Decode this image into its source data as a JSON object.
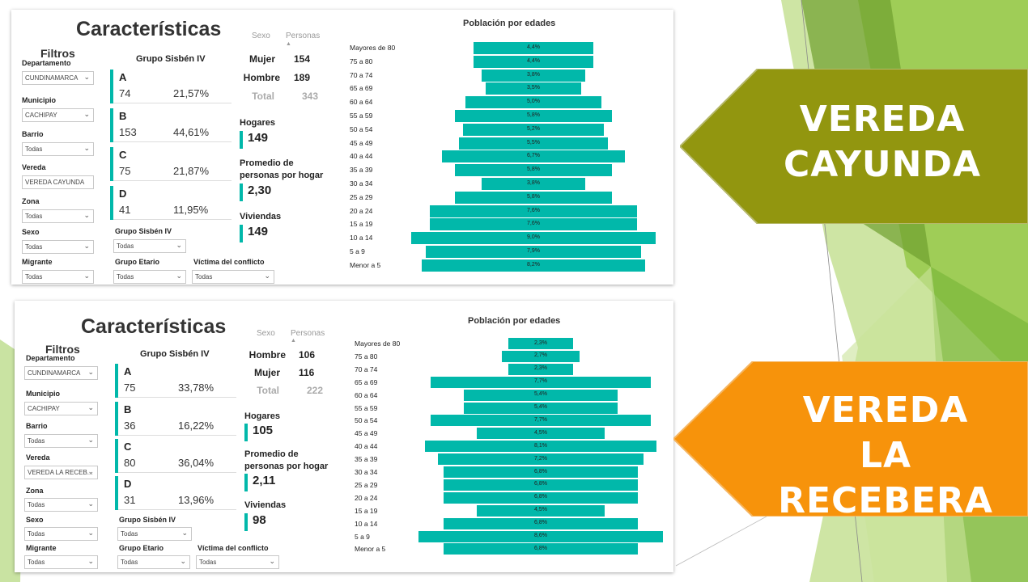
{
  "colors": {
    "bar": "#01b8aa",
    "green_banner": "#92960f",
    "orange_banner": "#f7930b"
  },
  "panels": [
    {
      "title": "Características",
      "filtros_title": "Filtros",
      "filters": [
        {
          "label": "Departamento",
          "value": "CUNDINAMARCA"
        },
        {
          "label": "Municipio",
          "value": "CACHIPAY"
        },
        {
          "label": "Barrio",
          "value": "Todas"
        },
        {
          "label": "Vereda",
          "value": "VEREDA CAYUNDA"
        },
        {
          "label": "Zona",
          "value": "Todas"
        },
        {
          "label": "Sexo",
          "value": "Todas"
        },
        {
          "label": "Migrante",
          "value": "Todas"
        }
      ],
      "bottom_filters": [
        {
          "label": "Grupo Sisbén IV",
          "value": "Todas"
        },
        {
          "label": "Grupo Etario",
          "value": "Todas"
        },
        {
          "label": "Víctima del conflicto",
          "value": "Todas"
        }
      ],
      "grupo_title": "Grupo Sisbén IV",
      "grupos": [
        {
          "letter": "A",
          "count": "74",
          "pct": "21,57%"
        },
        {
          "letter": "B",
          "count": "153",
          "pct": "44,61%"
        },
        {
          "letter": "C",
          "count": "75",
          "pct": "21,87%"
        },
        {
          "letter": "D",
          "count": "41",
          "pct": "11,95%"
        }
      ],
      "sexo_header": "Sexo",
      "personas_header": "Personas",
      "sexo_rows": [
        {
          "label": "Mujer",
          "value": "154"
        },
        {
          "label": "Hombre",
          "value": "189"
        }
      ],
      "total_label": "Total",
      "total_value": "343",
      "hogares_label": "Hogares",
      "hogares_value": "149",
      "promedio_label_1": "Promedio de",
      "promedio_label_2": "personas por hogar",
      "promedio_value": "2,30",
      "viviendas_label": "Viviendas",
      "viviendas_value": "149",
      "pyramid_title": "Población por edades",
      "pyramid": [
        {
          "age": "Mayores de 80",
          "pct": "4,4%",
          "v": 4.4
        },
        {
          "age": "75 a 80",
          "pct": "4,4%",
          "v": 4.4
        },
        {
          "age": "70 a 74",
          "pct": "3,8%",
          "v": 3.8
        },
        {
          "age": "65 a 69",
          "pct": "3,5%",
          "v": 3.5
        },
        {
          "age": "60 a 64",
          "pct": "5,0%",
          "v": 5.0
        },
        {
          "age": "55 a 59",
          "pct": "5,8%",
          "v": 5.8
        },
        {
          "age": "50 a 54",
          "pct": "5,2%",
          "v": 5.2
        },
        {
          "age": "45 a 49",
          "pct": "5,5%",
          "v": 5.5
        },
        {
          "age": "40 a 44",
          "pct": "6,7%",
          "v": 6.7
        },
        {
          "age": "35 a 39",
          "pct": "5,8%",
          "v": 5.8
        },
        {
          "age": "30 a 34",
          "pct": "3,8%",
          "v": 3.8
        },
        {
          "age": "25 a 29",
          "pct": "5,8%",
          "v": 5.8
        },
        {
          "age": "20 a 24",
          "pct": "7,6%",
          "v": 7.6
        },
        {
          "age": "15 a 19",
          "pct": "7,6%",
          "v": 7.6
        },
        {
          "age": "10 a 14",
          "pct": "9,0%",
          "v": 9.0
        },
        {
          "age": "5 a 9",
          "pct": "7,9%",
          "v": 7.9
        },
        {
          "age": "Menor a 5",
          "pct": "8,2%",
          "v": 8.2
        }
      ]
    },
    {
      "title": "Características",
      "filtros_title": "Filtros",
      "filters": [
        {
          "label": "Departamento",
          "value": "CUNDINAMARCA"
        },
        {
          "label": "Municipio",
          "value": "CACHIPAY"
        },
        {
          "label": "Barrio",
          "value": "Todas"
        },
        {
          "label": "Vereda",
          "value": "VEREDA LA RECEB..."
        },
        {
          "label": "Zona",
          "value": "Todas"
        },
        {
          "label": "Sexo",
          "value": "Todas"
        },
        {
          "label": "Migrante",
          "value": "Todas"
        }
      ],
      "bottom_filters": [
        {
          "label": "Grupo Sisbén IV",
          "value": "Todas"
        },
        {
          "label": "Grupo Etario",
          "value": "Todas"
        },
        {
          "label": "Víctima del conflicto",
          "value": "Todas"
        }
      ],
      "grupo_title": "Grupo Sisbén IV",
      "grupos": [
        {
          "letter": "A",
          "count": "75",
          "pct": "33,78%"
        },
        {
          "letter": "B",
          "count": "36",
          "pct": "16,22%"
        },
        {
          "letter": "C",
          "count": "80",
          "pct": "36,04%"
        },
        {
          "letter": "D",
          "count": "31",
          "pct": "13,96%"
        }
      ],
      "sexo_header": "Sexo",
      "personas_header": "Personas",
      "sexo_rows": [
        {
          "label": "Hombre",
          "value": "106"
        },
        {
          "label": "Mujer",
          "value": "116"
        }
      ],
      "total_label": "Total",
      "total_value": "222",
      "hogares_label": "Hogares",
      "hogares_value": "105",
      "promedio_label_1": "Promedio de",
      "promedio_label_2": "personas por hogar",
      "promedio_value": "2,11",
      "viviendas_label": "Viviendas",
      "viviendas_value": "98",
      "pyramid_title": "Población por edades",
      "pyramid": [
        {
          "age": "Mayores de 80",
          "pct": "2,3%",
          "v": 2.3
        },
        {
          "age": "75 a 80",
          "pct": "2,7%",
          "v": 2.7
        },
        {
          "age": "70 a 74",
          "pct": "2,3%",
          "v": 2.3
        },
        {
          "age": "65 a 69",
          "pct": "7,7%",
          "v": 7.7
        },
        {
          "age": "60 a 64",
          "pct": "5,4%",
          "v": 5.4
        },
        {
          "age": "55 a 59",
          "pct": "5,4%",
          "v": 5.4
        },
        {
          "age": "50 a 54",
          "pct": "7,7%",
          "v": 7.7
        },
        {
          "age": "45 a 49",
          "pct": "4,5%",
          "v": 4.5
        },
        {
          "age": "40 a 44",
          "pct": "8,1%",
          "v": 8.1
        },
        {
          "age": "35 a 39",
          "pct": "7,2%",
          "v": 7.2
        },
        {
          "age": "30 a 34",
          "pct": "6,8%",
          "v": 6.8
        },
        {
          "age": "25 a 29",
          "pct": "6,8%",
          "v": 6.8
        },
        {
          "age": "20 a 24",
          "pct": "6,8%",
          "v": 6.8
        },
        {
          "age": "15 a 19",
          "pct": "4,5%",
          "v": 4.5
        },
        {
          "age": "10 a 14",
          "pct": "6,8%",
          "v": 6.8
        },
        {
          "age": "5 a 9",
          "pct": "8,6%",
          "v": 8.6
        },
        {
          "age": "Menor a 5",
          "pct": "6,8%",
          "v": 6.8
        }
      ]
    }
  ],
  "banners": [
    {
      "line1": "VEREDA",
      "line2": "CAYUNDA"
    },
    {
      "line1": "VEREDA",
      "line2": "LA RECEBERA"
    }
  ]
}
